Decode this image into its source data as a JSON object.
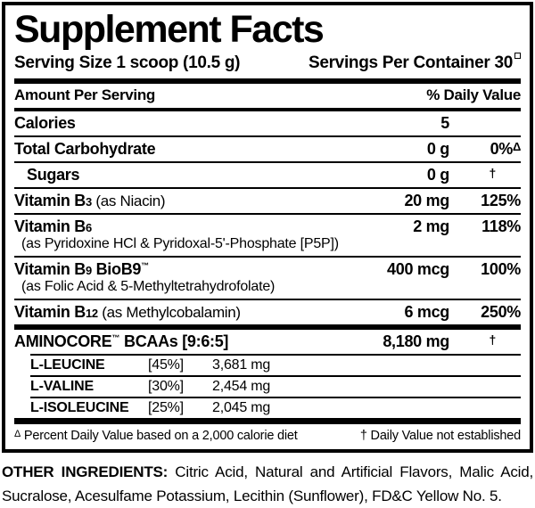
{
  "panel": {
    "title": "Supplement Facts",
    "serving_size": "Serving Size 1 scoop (10.5 g)",
    "servings_per_container": "Servings Per Container 30",
    "columns": {
      "amount_header": "Amount Per Serving",
      "dv_header": "% Daily Value"
    },
    "rows": {
      "calories": {
        "label": "Calories",
        "amount": "5"
      },
      "total_carbohydrate": {
        "label": "Total Carbohydrate",
        "amount": "0 g",
        "dv": "0%",
        "dv_mark": "Δ"
      },
      "sugars": {
        "label": "Sugars",
        "amount": "0 g",
        "dv_mark": "†"
      },
      "vitamin_b3": {
        "label": "Vitamin B",
        "subscript": "3",
        "note": " (as Niacin)",
        "amount": "20 mg",
        "dv": "125%"
      },
      "vitamin_b6": {
        "label": "Vitamin B",
        "subscript": "6",
        "subline": "(as Pyridoxine HCl & Pyridoxal-5'-Phosphate [P5P])",
        "amount": "2 mg",
        "dv": "118%"
      },
      "vitamin_b9": {
        "label": "Vitamin B",
        "subscript": "9",
        "label_suffix": " BioB9",
        "trademark": "™",
        "subline": "(as Folic Acid & 5-Methyltetrahydrofolate)",
        "amount": "400 mcg",
        "dv": "100%"
      },
      "vitamin_b12": {
        "label": "Vitamin B",
        "subscript": "12",
        "note": " (as Methylcobalamin)",
        "amount": "6 mcg",
        "dv": "250%"
      }
    },
    "aminocore": {
      "name": "AMINOCORE",
      "trademark": "™",
      "name_rest": " BCAAs [9:6:5]",
      "amount": "8,180 mg",
      "dv_mark": "†",
      "components": [
        {
          "name": "L-LEUCINE",
          "ratio": "[45%]",
          "amount": "3,681 mg"
        },
        {
          "name": "L-VALINE",
          "ratio": "[30%]",
          "amount": "2,454 mg"
        },
        {
          "name": "L-ISOLEUCINE",
          "ratio": "[25%]",
          "amount": "2,045 mg"
        }
      ]
    },
    "footnotes": {
      "left_mark": "Δ",
      "left_text": " Percent Daily Value based on a 2,000 calorie diet",
      "right_mark": "†",
      "right_text": " Daily Value not established"
    }
  },
  "other_ingredients": {
    "label": "OTHER INGREDIENTS:",
    "text": " Citric Acid, Natural and Artificial Flavors, Malic Acid, Sucralose, Acesulfame Potassium, Lecithin (Sunflower), FD&C Yellow No. 5."
  },
  "colors": {
    "ink": "#000000",
    "paper": "#ffffff"
  }
}
